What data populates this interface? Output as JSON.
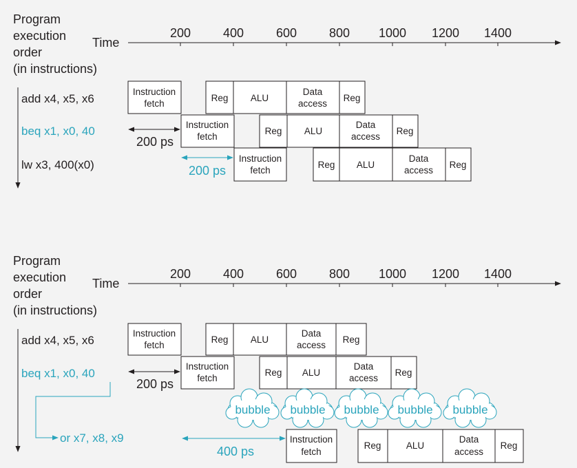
{
  "colors": {
    "accent": "#2aa4bc",
    "ink": "#231f20",
    "background": "#f3f3f3",
    "box": "#ffffff",
    "bubble": "#ffffff"
  },
  "diagrams": [
    {
      "axis_label_lines": [
        "Program",
        "execution",
        "order",
        "(in instructions)"
      ],
      "time_label": "Time",
      "ticks": [
        "200",
        "400",
        "600",
        "800",
        "1000",
        "1200",
        "1400"
      ],
      "instructions": [
        {
          "text": "add x4, x5, x6",
          "accent": false
        },
        {
          "text": "beq x1, x0, 40",
          "accent": true
        },
        {
          "text": "lw x3, 400(x0)",
          "accent": false
        }
      ],
      "stages": [
        "Instruction fetch",
        "Reg",
        "ALU",
        "Data access",
        "Reg"
      ],
      "annotations": [
        "200 ps",
        "200 ps"
      ]
    },
    {
      "axis_label_lines": [
        "Program",
        "execution",
        "order",
        "(in instructions)"
      ],
      "time_label": "Time",
      "ticks": [
        "200",
        "400",
        "600",
        "800",
        "1000",
        "1200",
        "1400"
      ],
      "instructions": [
        {
          "text": "add x4, x5, x6",
          "accent": false
        },
        {
          "text": "beq x1, x0, 40",
          "accent": true
        },
        {
          "text": "or x7, x8, x9",
          "accent": true
        }
      ],
      "stages": [
        "Instruction fetch",
        "Reg",
        "ALU",
        "Data access",
        "Reg"
      ],
      "bubbles": [
        "bubble",
        "bubble",
        "bubble",
        "bubble",
        "bubble"
      ],
      "annotations": [
        "200 ps",
        "400 ps"
      ]
    }
  ]
}
